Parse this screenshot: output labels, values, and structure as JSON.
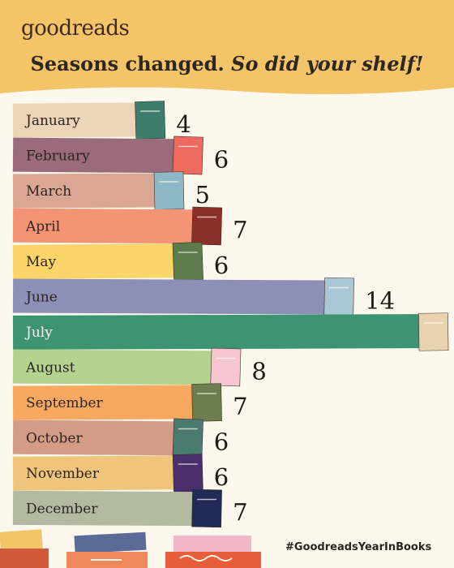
{
  "brand": {
    "logo": "goodreads"
  },
  "headline": {
    "main": "Seasons changed.",
    "emphasis": "So did your shelf!"
  },
  "hashtag": "#GoodreadsYearInBooks",
  "colors": {
    "header_bg": "#f3c468",
    "page_bg": "#fdf8ee",
    "text_dark": "#2b2520"
  },
  "chart_data": {
    "type": "bar",
    "orientation": "horizontal",
    "categories": [
      "January",
      "February",
      "March",
      "April",
      "May",
      "June",
      "July",
      "August",
      "September",
      "October",
      "November",
      "December"
    ],
    "values": [
      4,
      6,
      5,
      7,
      6,
      14,
      19,
      8,
      7,
      6,
      6,
      7
    ],
    "colors": [
      "#ecd4b6",
      "#9a6b7a",
      "#d9a793",
      "#f39475",
      "#fbd56a",
      "#8c8fb6",
      "#3d9471",
      "#b3d38f",
      "#f8a95f",
      "#d49b86",
      "#eec57a",
      "#b4b9a2"
    ],
    "book_colors": [
      "#3d7d6c",
      "#ee6a5f",
      "#8fb8c6",
      "#8a2f2a",
      "#5c7a4c",
      "#a9c7d4",
      "#e8d2b0",
      "#f5c6d0",
      "#6c7d4e",
      "#4b7a70",
      "#4a2f6c",
      "#1f2a55"
    ]
  }
}
